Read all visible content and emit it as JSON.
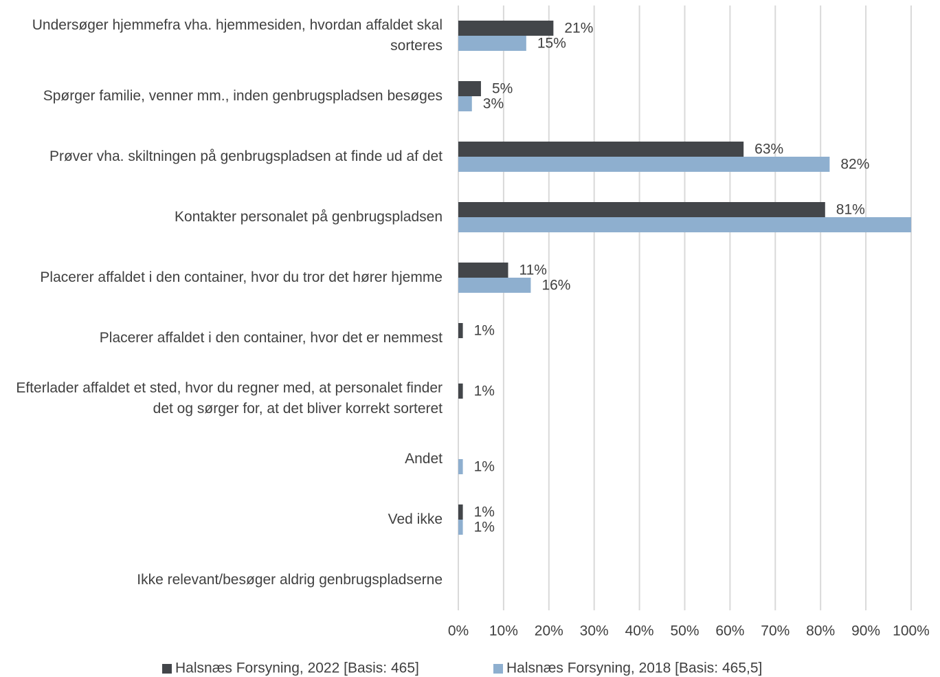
{
  "chart_data": {
    "type": "barh",
    "categories": [
      "Undersøger hjemmefra vha. hjemmesiden, hvordan affaldet skal sorteres",
      "Spørger familie, venner mm., inden genbrugspladsen besøges",
      "Prøver vha. skiltningen på genbrugspladsen at finde ud af det",
      "Kontakter personalet på genbrugspladsen",
      "Placerer affaldet i den container, hvor du tror det hører hjemme",
      "Placerer affaldet i den container, hvor det er nemmest",
      "Efterlader affaldet et sted, hvor du regner med, at personalet finder det og sørger for, at det bliver korrekt sorteret",
      "Andet",
      "Ved ikke",
      "Ikke relevant/besøger aldrig genbrugspladserne"
    ],
    "series": [
      {
        "name": "Halsnæs Forsyning, 2022 [Basis: 465]",
        "color": "#43464a",
        "values": [
          21,
          5,
          63,
          81,
          11,
          1,
          1,
          null,
          1,
          null
        ],
        "value_labels": [
          "21%",
          "5%",
          "63%",
          "81%",
          "11%",
          "1%",
          "1%",
          null,
          "1%",
          null
        ]
      },
      {
        "name": "Halsnæs Forsyning, 2018 [Basis: 465,5]",
        "color": "#8eafcf",
        "values": [
          15,
          3,
          82,
          100,
          16,
          null,
          null,
          1,
          1,
          null
        ],
        "value_labels": [
          "15%",
          "3%",
          "82%",
          null,
          "16%",
          null,
          null,
          "1%",
          "1%",
          null
        ]
      }
    ],
    "xlim": [
      0,
      100
    ],
    "xticks": [
      {
        "value": 0,
        "label": "0%"
      },
      {
        "value": 10,
        "label": "10%"
      },
      {
        "value": 20,
        "label": "20%"
      },
      {
        "value": 30,
        "label": "30%"
      },
      {
        "value": 40,
        "label": "40%"
      },
      {
        "value": 50,
        "label": "50%"
      },
      {
        "value": 60,
        "label": "60%"
      },
      {
        "value": 70,
        "label": "70%"
      },
      {
        "value": 80,
        "label": "80%"
      },
      {
        "value": 90,
        "label": "90%"
      },
      {
        "value": 100,
        "label": "100%"
      }
    ],
    "grid": true,
    "legend": "bottom"
  }
}
